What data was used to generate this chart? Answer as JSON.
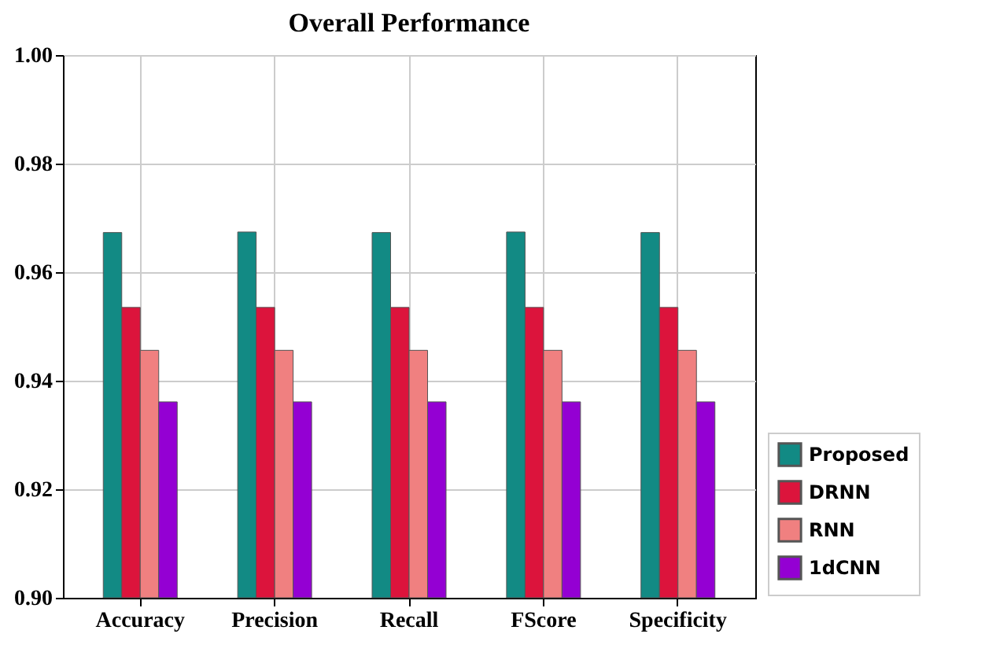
{
  "chart_data": {
    "type": "bar",
    "title": "Overall Performance",
    "categories": [
      "Accuracy",
      "Precision",
      "Recall",
      "FScore",
      "Specificity"
    ],
    "series": [
      {
        "name": "Proposed",
        "color": "#128a84",
        "values": [
          0.9673,
          0.9674,
          0.9673,
          0.9674,
          0.9673
        ]
      },
      {
        "name": "DRNN",
        "color": "#dc143c",
        "values": [
          0.9535,
          0.9535,
          0.9535,
          0.9535,
          0.9535
        ]
      },
      {
        "name": "RNN",
        "color": "#f08080",
        "values": [
          0.9456,
          0.9456,
          0.9456,
          0.9456,
          0.9456
        ]
      },
      {
        "name": "1dCNN",
        "color": "#9400d3",
        "values": [
          0.9361,
          0.9361,
          0.9361,
          0.9361,
          0.9361
        ]
      }
    ],
    "ylim": [
      0.9,
      1.0
    ],
    "yticks": [
      {
        "value": 0.9,
        "label": "0.90"
      },
      0.92,
      0.94,
      0.96,
      0.98,
      {
        "value": 1.0,
        "label": "1.00"
      }
    ],
    "grid": true,
    "legend": "bottom right"
  }
}
